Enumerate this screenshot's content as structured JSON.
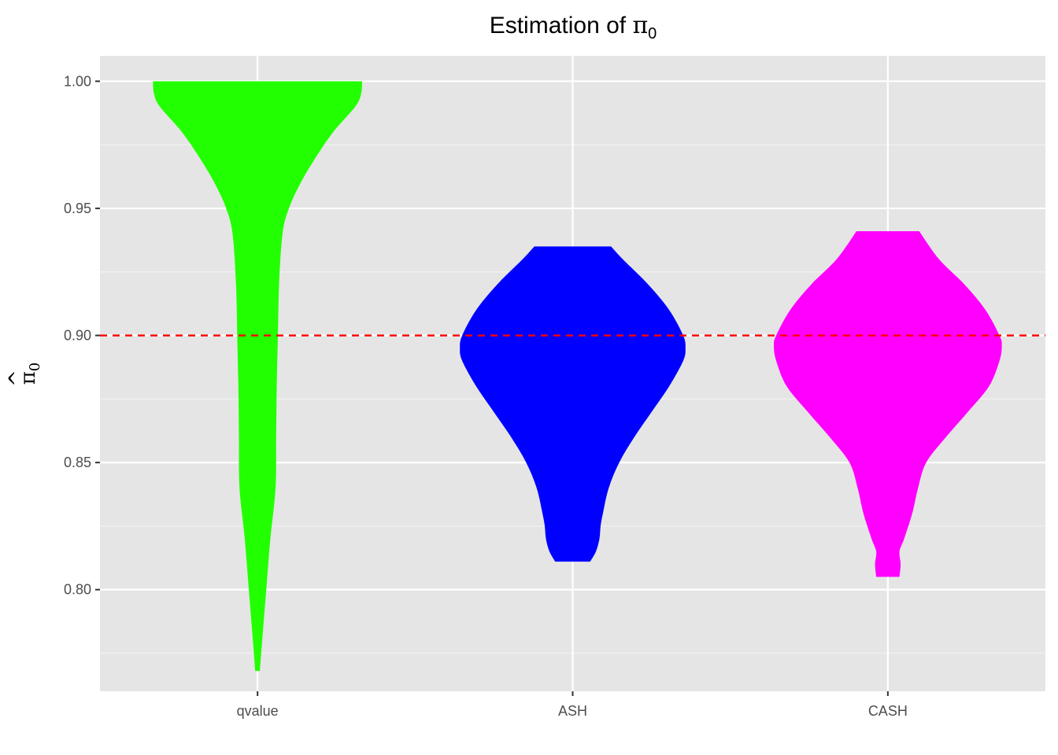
{
  "chart_data": {
    "type": "violin",
    "title_prefix": "Estimation of ",
    "title_symbol": "π",
    "title_subscript": "0",
    "xlabel": "",
    "ylabel_hat": "^",
    "ylabel_symbol": "π",
    "ylabel_subscript": "0",
    "ylim": [
      0.76,
      1.01
    ],
    "yticks": [
      0.8,
      0.85,
      0.9,
      0.95,
      1.0
    ],
    "ytick_labels": [
      "0.80",
      "0.85",
      "0.90",
      "0.95",
      "1.00"
    ],
    "categories": [
      "qvalue",
      "ASH",
      "CASH"
    ],
    "reference_line": {
      "y": 0.9,
      "color": "#ff0000",
      "style": "dashed"
    },
    "grid": true,
    "background": "#e5e5e5",
    "series": [
      {
        "category": "qvalue",
        "color": "#22ff00",
        "min": 0.768,
        "max": 1.0,
        "density": [
          [
            0.768,
            0.02
          ],
          [
            0.78,
            0.04
          ],
          [
            0.8,
            0.075
          ],
          [
            0.82,
            0.11
          ],
          [
            0.84,
            0.155
          ],
          [
            0.86,
            0.16
          ],
          [
            0.88,
            0.165
          ],
          [
            0.9,
            0.175
          ],
          [
            0.92,
            0.185
          ],
          [
            0.94,
            0.215
          ],
          [
            0.95,
            0.27
          ],
          [
            0.96,
            0.37
          ],
          [
            0.97,
            0.5
          ],
          [
            0.98,
            0.65
          ],
          [
            0.99,
            0.84
          ],
          [
            0.995,
            0.89
          ],
          [
            1.0,
            0.9
          ]
        ]
      },
      {
        "category": "ASH",
        "color": "#0000ff",
        "min": 0.811,
        "max": 0.935,
        "density": [
          [
            0.811,
            0.15
          ],
          [
            0.815,
            0.2
          ],
          [
            0.82,
            0.23
          ],
          [
            0.825,
            0.24
          ],
          [
            0.83,
            0.26
          ],
          [
            0.84,
            0.31
          ],
          [
            0.85,
            0.4
          ],
          [
            0.86,
            0.53
          ],
          [
            0.87,
            0.68
          ],
          [
            0.88,
            0.83
          ],
          [
            0.89,
            0.95
          ],
          [
            0.895,
            0.97
          ],
          [
            0.9,
            0.95
          ],
          [
            0.91,
            0.83
          ],
          [
            0.92,
            0.65
          ],
          [
            0.93,
            0.43
          ],
          [
            0.935,
            0.33
          ]
        ]
      },
      {
        "category": "CASH",
        "color": "#ff00ff",
        "min": 0.805,
        "max": 0.941,
        "density": [
          [
            0.805,
            0.1
          ],
          [
            0.81,
            0.11
          ],
          [
            0.815,
            0.1
          ],
          [
            0.82,
            0.14
          ],
          [
            0.83,
            0.21
          ],
          [
            0.84,
            0.26
          ],
          [
            0.85,
            0.33
          ],
          [
            0.86,
            0.5
          ],
          [
            0.87,
            0.69
          ],
          [
            0.88,
            0.87
          ],
          [
            0.89,
            0.96
          ],
          [
            0.896,
            0.98
          ],
          [
            0.9,
            0.96
          ],
          [
            0.91,
            0.84
          ],
          [
            0.92,
            0.66
          ],
          [
            0.93,
            0.44
          ],
          [
            0.941,
            0.27
          ]
        ]
      }
    ]
  }
}
